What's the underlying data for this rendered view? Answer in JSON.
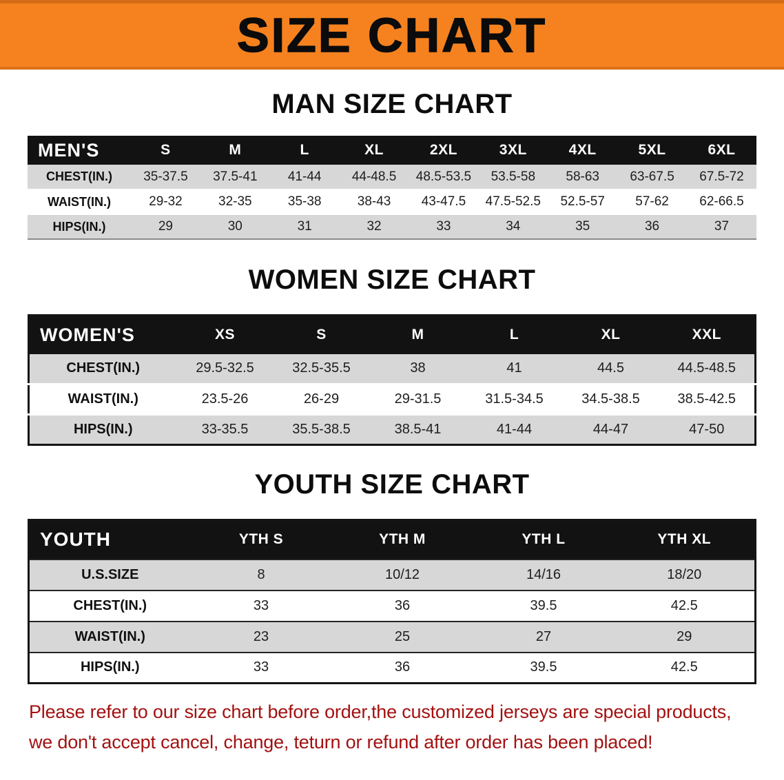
{
  "banner": {
    "title": "SIZE CHART"
  },
  "men": {
    "heading": "MAN SIZE CHART",
    "table": {
      "label": "MEN'S",
      "columns": [
        "S",
        "M",
        "L",
        "XL",
        "2XL",
        "3XL",
        "4XL",
        "5XL",
        "6XL"
      ],
      "rows": [
        {
          "label": "CHEST(IN.)",
          "values": [
            "35-37.5",
            "37.5-41",
            "41-44",
            "44-48.5",
            "48.5-53.5",
            "53.5-58",
            "58-63",
            "63-67.5",
            "67.5-72"
          ]
        },
        {
          "label": "WAIST(IN.)",
          "values": [
            "29-32",
            "32-35",
            "35-38",
            "38-43",
            "43-47.5",
            "47.5-52.5",
            "52.5-57",
            "57-62",
            "62-66.5"
          ]
        },
        {
          "label": "HIPS(IN.)",
          "values": [
            "29",
            "30",
            "31",
            "32",
            "33",
            "34",
            "35",
            "36",
            "37"
          ]
        }
      ]
    }
  },
  "women": {
    "heading": "WOMEN SIZE CHART",
    "table": {
      "label": "WOMEN'S",
      "columns": [
        "XS",
        "S",
        "M",
        "L",
        "XL",
        "XXL"
      ],
      "rows": [
        {
          "label": "CHEST(IN.)",
          "values": [
            "29.5-32.5",
            "32.5-35.5",
            "38",
            "41",
            "44.5",
            "44.5-48.5"
          ]
        },
        {
          "label": "WAIST(IN.)",
          "values": [
            "23.5-26",
            "26-29",
            "29-31.5",
            "31.5-34.5",
            "34.5-38.5",
            "38.5-42.5"
          ]
        },
        {
          "label": "HIPS(IN.)",
          "values": [
            "33-35.5",
            "35.5-38.5",
            "38.5-41",
            "41-44",
            "44-47",
            "47-50"
          ]
        }
      ]
    }
  },
  "youth": {
    "heading": "YOUTH SIZE CHART",
    "table": {
      "label": "YOUTH",
      "columns": [
        "YTH S",
        "YTH M",
        "YTH L",
        "YTH XL"
      ],
      "rows": [
        {
          "label": "U.S.SIZE",
          "values": [
            "8",
            "10/12",
            "14/16",
            "18/20"
          ]
        },
        {
          "label": "CHEST(IN.)",
          "values": [
            "33",
            "36",
            "39.5",
            "42.5"
          ]
        },
        {
          "label": "WAIST(IN.)",
          "values": [
            "23",
            "25",
            "27",
            "29"
          ]
        },
        {
          "label": "HIPS(IN.)",
          "values": [
            "33",
            "36",
            "39.5",
            "42.5"
          ]
        }
      ]
    }
  },
  "note": {
    "line1": "Please refer to our size chart before order,the customized jerseys are special products,",
    "line2": "we don't accept cancel, change, teturn or refund after order has been placed!"
  },
  "colors": {
    "banner_bg": "#F5821F",
    "banner_text": "#0B0B0B",
    "header_bg": "#121212",
    "header_text": "#FFFFFF",
    "row_shade": "#D7D7D7",
    "note_red": "#A31111",
    "text_dark": "#1E1E1E"
  }
}
